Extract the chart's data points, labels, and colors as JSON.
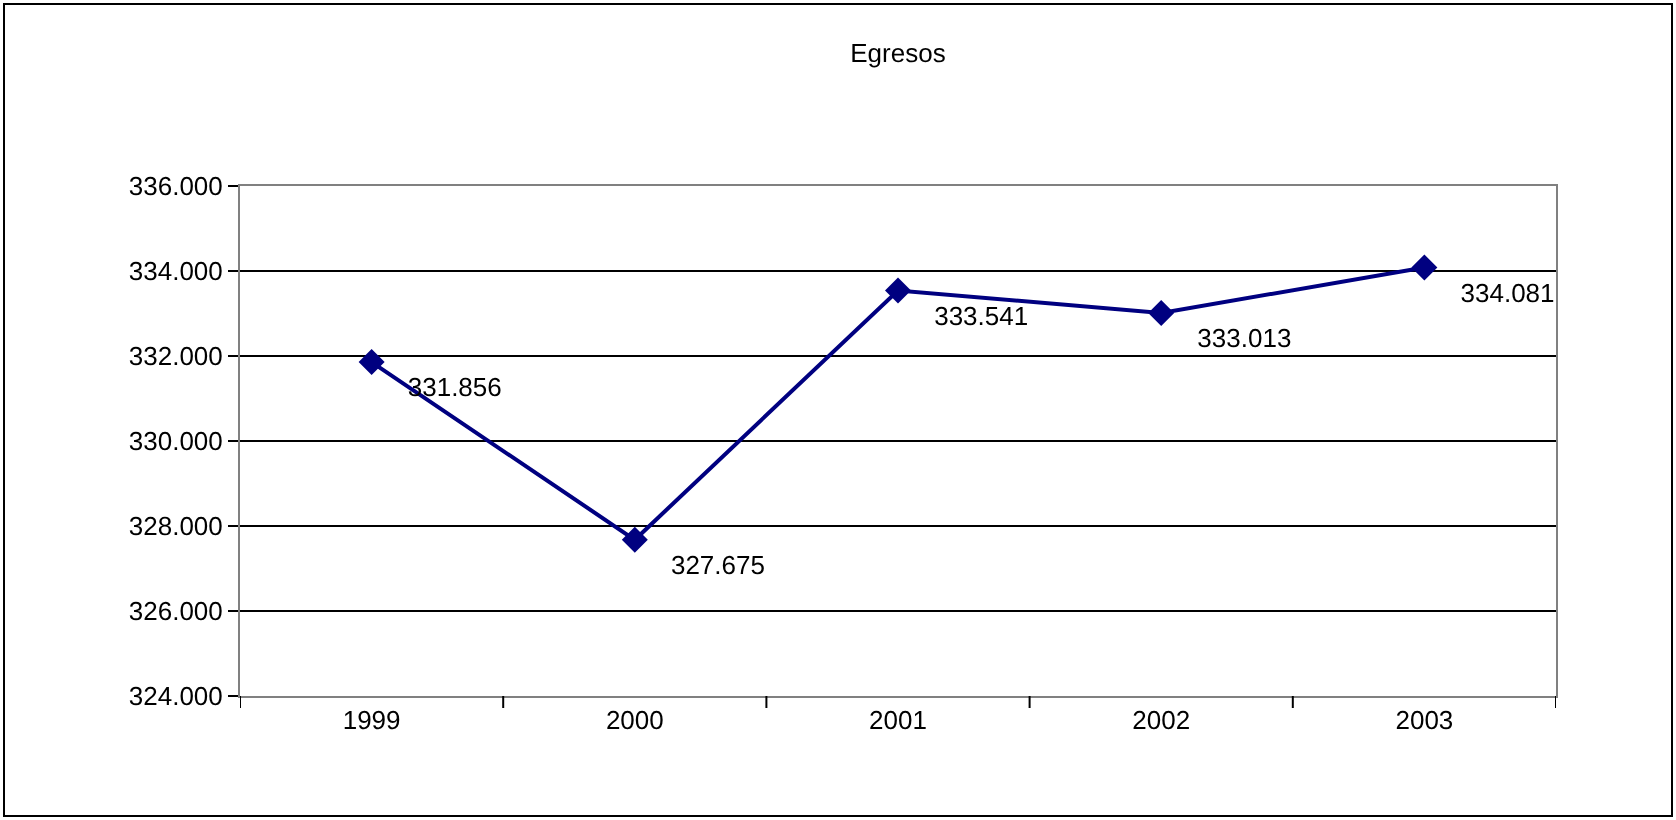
{
  "chart_data": {
    "type": "line",
    "title": "Egresos",
    "categories": [
      "1999",
      "2000",
      "2001",
      "2002",
      "2003"
    ],
    "series": [
      {
        "color": "#000080",
        "values": [
          331856,
          327675,
          333541,
          333013,
          334081
        ],
        "value_labels": [
          "331.856",
          "327.675",
          "333.541",
          "333.013",
          "334.081"
        ]
      }
    ],
    "ylim": [
      324000,
      336000
    ],
    "yticks": [
      {
        "value": 324000,
        "label": "324.000"
      },
      {
        "value": 326000,
        "label": "326.000"
      },
      {
        "value": 328000,
        "label": "328.000"
      },
      {
        "value": 330000,
        "label": "330.000"
      },
      {
        "value": 332000,
        "label": "332.000"
      },
      {
        "value": 334000,
        "label": "334.000"
      },
      {
        "value": 336000,
        "label": "336.000"
      }
    ],
    "grid": "y",
    "marker": "diamond",
    "line_style": "solid"
  }
}
